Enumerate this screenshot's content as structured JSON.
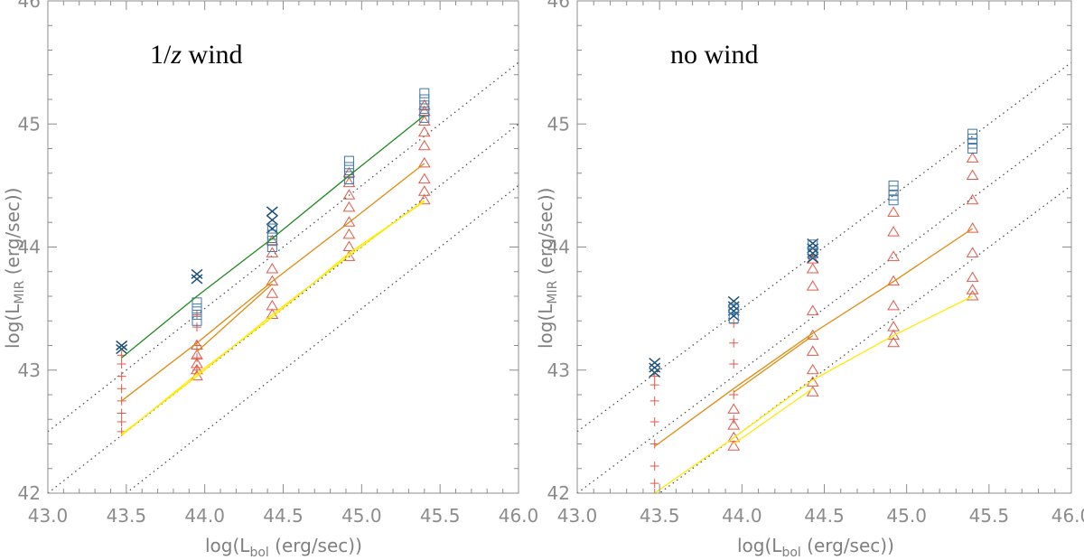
{
  "chart_data": [
    {
      "type": "scatter",
      "title": "1/z wind",
      "title_parts": [
        "1/",
        "z",
        " wind"
      ],
      "xlabel": {
        "pre": "log(L",
        "sub": "bol",
        "post": " (erg/sec))"
      },
      "ylabel": {
        "pre": "log(L",
        "sub": "MIR",
        "post": " (erg/sec))"
      },
      "xlim": [
        43.0,
        46.0
      ],
      "ylim": [
        42.0,
        46.0
      ],
      "xticks": [
        "43.0",
        "43.5",
        "44.0",
        "44.5",
        "45.0",
        "45.5",
        "46.0"
      ],
      "yticks": [
        "42",
        "43",
        "44",
        "45",
        "46"
      ],
      "reference_lines": [
        {
          "name": "ratio-0.5",
          "intercept": -0.5
        },
        {
          "name": "ratio-1.0",
          "intercept": -1.0
        },
        {
          "name": "ratio-1.5",
          "intercept": -1.5
        }
      ],
      "series": [
        {
          "name": "plus",
          "marker": "plus",
          "color": "#e05a4a",
          "points": [
            [
              43.47,
              42.5
            ],
            [
              43.47,
              42.58
            ],
            [
              43.47,
              42.65
            ],
            [
              43.47,
              42.75
            ],
            [
              43.47,
              42.85
            ],
            [
              43.47,
              42.95
            ],
            [
              43.47,
              43.05
            ],
            [
              43.47,
              43.12
            ],
            [
              43.95,
              43.0
            ],
            [
              43.95,
              43.1
            ],
            [
              43.95,
              43.2
            ],
            [
              43.95,
              43.35
            ],
            [
              43.95,
              43.45
            ]
          ]
        },
        {
          "name": "triangle",
          "marker": "triangle",
          "color": "#e05a4a",
          "points": [
            [
              43.95,
              42.95
            ],
            [
              43.95,
              43.0
            ],
            [
              43.95,
              43.05
            ],
            [
              43.95,
              43.12
            ],
            [
              43.95,
              43.2
            ],
            [
              44.43,
              43.45
            ],
            [
              44.43,
              43.52
            ],
            [
              44.43,
              43.62
            ],
            [
              44.43,
              43.72
            ],
            [
              44.43,
              43.82
            ],
            [
              44.43,
              43.95
            ],
            [
              44.43,
              44.05
            ],
            [
              44.92,
              43.92
            ],
            [
              44.92,
              44.0
            ],
            [
              44.92,
              44.1
            ],
            [
              44.92,
              44.2
            ],
            [
              44.92,
              44.32
            ],
            [
              44.92,
              44.42
            ],
            [
              44.92,
              44.52
            ],
            [
              44.92,
              44.6
            ],
            [
              45.4,
              44.38
            ],
            [
              45.4,
              44.45
            ],
            [
              45.4,
              44.55
            ],
            [
              45.4,
              44.68
            ],
            [
              45.4,
              44.82
            ],
            [
              45.4,
              44.93
            ],
            [
              45.4,
              45.02
            ],
            [
              45.4,
              45.1
            ],
            [
              45.4,
              45.15
            ]
          ]
        },
        {
          "name": "cross",
          "marker": "x",
          "color": "#1c4f7a",
          "points": [
            [
              43.47,
              43.2
            ],
            [
              43.47,
              43.17
            ],
            [
              43.95,
              43.78
            ],
            [
              43.95,
              43.74
            ],
            [
              44.43,
              44.29
            ],
            [
              44.43,
              44.22
            ],
            [
              44.43,
              44.15
            ]
          ]
        },
        {
          "name": "square",
          "marker": "square",
          "color": "#3f78a8",
          "points": [
            [
              43.95,
              43.4
            ],
            [
              43.95,
              43.45
            ],
            [
              43.95,
              43.5
            ],
            [
              43.95,
              43.55
            ],
            [
              44.43,
              44.0
            ],
            [
              44.43,
              44.05
            ],
            [
              44.43,
              44.1
            ],
            [
              44.43,
              44.15
            ],
            [
              44.92,
              44.55
            ],
            [
              44.92,
              44.6
            ],
            [
              44.92,
              44.65
            ],
            [
              44.92,
              44.7
            ],
            [
              45.4,
              45.05
            ],
            [
              45.4,
              45.1
            ],
            [
              45.4,
              45.15
            ],
            [
              45.4,
              45.2
            ],
            [
              45.4,
              45.25
            ]
          ]
        }
      ],
      "lines": [
        {
          "name": "green-line",
          "color": "#1f8a1f",
          "x": [
            43.47,
            43.95,
            44.43,
            44.92,
            45.4
          ],
          "y": [
            43.1,
            43.6,
            44.07,
            44.58,
            45.07
          ]
        },
        {
          "name": "orange-line-a",
          "color": "#e08a10",
          "x": [
            43.47,
            43.95,
            44.43,
            44.92,
            45.4
          ],
          "y": [
            42.75,
            43.22,
            43.72,
            44.2,
            44.68
          ]
        },
        {
          "name": "orange-line-b",
          "color": "#e08a10",
          "x": [
            43.95,
            44.43
          ],
          "y": [
            43.15,
            43.7
          ]
        },
        {
          "name": "yellow-line-a",
          "color": "#ffea00",
          "x": [
            43.47,
            43.95,
            44.43,
            44.92,
            45.4
          ],
          "y": [
            42.48,
            42.95,
            43.45,
            43.93,
            44.38
          ]
        },
        {
          "name": "yellow-line-b",
          "color": "#ffea00",
          "x": [
            43.47,
            43.95,
            44.43,
            44.92,
            45.4
          ],
          "y": [
            42.47,
            42.97,
            43.43,
            43.95,
            44.37
          ]
        }
      ]
    },
    {
      "type": "scatter",
      "title": "no wind",
      "title_parts": [
        "no wind",
        "",
        ""
      ],
      "xlabel": {
        "pre": "log(L",
        "sub": "bol",
        "post": " (erg/sec))"
      },
      "ylabel": {
        "pre": "log(L",
        "sub": "MIR",
        "post": " (erg/sec))"
      },
      "xlim": [
        43.0,
        46.0
      ],
      "ylim": [
        42.0,
        46.0
      ],
      "xticks": [
        "43.0",
        "43.5",
        "44.0",
        "44.5",
        "45.0",
        "45.5",
        "46.0"
      ],
      "yticks": [
        "42",
        "43",
        "44",
        "45",
        "46"
      ],
      "reference_lines": [
        {
          "name": "ratio-0.5",
          "intercept": -0.5
        },
        {
          "name": "ratio-1.0",
          "intercept": -1.0
        },
        {
          "name": "ratio-1.5",
          "intercept": -1.5
        }
      ],
      "series": [
        {
          "name": "plus",
          "marker": "plus",
          "color": "#e05a4a",
          "points": [
            [
              43.47,
              42.0
            ],
            [
              43.47,
              42.08
            ],
            [
              43.47,
              42.22
            ],
            [
              43.47,
              42.4
            ],
            [
              43.47,
              42.58
            ],
            [
              43.47,
              42.75
            ],
            [
              43.47,
              42.88
            ],
            [
              43.47,
              42.95
            ],
            [
              43.95,
              42.6
            ],
            [
              43.95,
              42.8
            ],
            [
              43.95,
              43.05
            ],
            [
              43.95,
              43.22
            ],
            [
              43.95,
              43.38
            ]
          ]
        },
        {
          "name": "triangle",
          "marker": "triangle",
          "color": "#e05a4a",
          "points": [
            [
              43.95,
              42.38
            ],
            [
              43.95,
              42.45
            ],
            [
              43.95,
              42.55
            ],
            [
              43.95,
              42.68
            ],
            [
              44.43,
              42.82
            ],
            [
              44.43,
              42.9
            ],
            [
              44.43,
              43.0
            ],
            [
              44.43,
              43.15
            ],
            [
              44.43,
              43.28
            ],
            [
              44.43,
              43.48
            ],
            [
              44.43,
              43.68
            ],
            [
              44.43,
              43.82
            ],
            [
              44.43,
              43.9
            ],
            [
              44.92,
              43.22
            ],
            [
              44.92,
              43.28
            ],
            [
              44.92,
              43.35
            ],
            [
              44.92,
              43.52
            ],
            [
              44.92,
              43.72
            ],
            [
              44.92,
              43.92
            ],
            [
              44.92,
              44.12
            ],
            [
              44.92,
              44.28
            ],
            [
              45.4,
              43.6
            ],
            [
              45.4,
              43.65
            ],
            [
              45.4,
              43.75
            ],
            [
              45.4,
              43.95
            ],
            [
              45.4,
              44.15
            ],
            [
              45.4,
              44.38
            ],
            [
              45.4,
              44.58
            ],
            [
              45.4,
              44.72
            ]
          ]
        },
        {
          "name": "cross",
          "marker": "x",
          "color": "#1c4f7a",
          "points": [
            [
              43.47,
              43.06
            ],
            [
              43.47,
              43.02
            ],
            [
              43.47,
              42.98
            ],
            [
              43.95,
              43.56
            ],
            [
              43.95,
              43.52
            ],
            [
              43.95,
              43.48
            ],
            [
              43.95,
              43.44
            ],
            [
              44.43,
              44.03
            ],
            [
              44.43,
              43.99
            ],
            [
              44.43,
              43.95
            ],
            [
              44.43,
              43.91
            ]
          ]
        },
        {
          "name": "square",
          "marker": "square",
          "color": "#3f78a8",
          "points": [
            [
              43.95,
              43.42
            ],
            [
              43.95,
              43.5
            ],
            [
              44.43,
              43.95
            ],
            [
              44.43,
              44.02
            ],
            [
              44.92,
              44.38
            ],
            [
              44.92,
              44.42
            ],
            [
              44.92,
              44.46
            ],
            [
              44.92,
              44.5
            ],
            [
              45.4,
              44.8
            ],
            [
              45.4,
              44.84
            ],
            [
              45.4,
              44.88
            ],
            [
              45.4,
              44.92
            ]
          ]
        }
      ],
      "lines": [
        {
          "name": "orange-line-a",
          "color": "#e08a10",
          "x": [
            43.47,
            43.95,
            44.43,
            44.92,
            45.4
          ],
          "y": [
            42.38,
            42.85,
            43.3,
            43.72,
            44.15
          ]
        },
        {
          "name": "orange-line-b",
          "color": "#e08a10",
          "x": [
            43.95,
            44.43
          ],
          "y": [
            42.82,
            43.28
          ]
        },
        {
          "name": "yellow-line-a",
          "color": "#ffea00",
          "x": [
            43.47,
            43.95,
            44.43,
            44.92,
            45.4
          ],
          "y": [
            42.0,
            42.45,
            42.92,
            43.28,
            43.6
          ]
        },
        {
          "name": "yellow-line-b",
          "color": "#ffea00",
          "x": [
            43.95,
            44.43
          ],
          "y": [
            42.4,
            42.85
          ]
        }
      ]
    }
  ]
}
